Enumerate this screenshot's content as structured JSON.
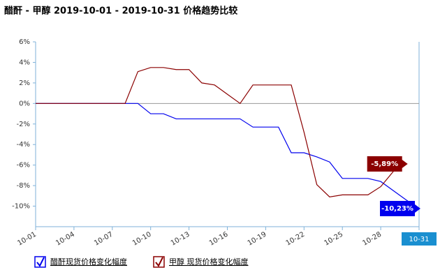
{
  "chart_data": {
    "type": "line",
    "title": "醋酐 - 甲醇 2019-10-01 - 2019-10-31 价格趋势比较",
    "categories": [
      "10-01",
      null,
      null,
      "10-04",
      null,
      null,
      "10-07",
      null,
      null,
      "10-10",
      null,
      null,
      "10-13",
      null,
      null,
      "10-16",
      null,
      null,
      "10-19",
      null,
      null,
      "10-22",
      null,
      null,
      "10-25",
      null,
      null,
      "10-28",
      null,
      null,
      "10-31"
    ],
    "ylim": [
      -12,
      6
    ],
    "yticks": [
      {
        "value": 6,
        "label": "6%"
      },
      {
        "value": 4,
        "label": "4%"
      },
      {
        "value": 2,
        "label": "2%"
      },
      {
        "value": 0,
        "label": "0%"
      },
      {
        "value": -2,
        "label": "-2%"
      },
      {
        "value": -4,
        "label": "-4%"
      },
      {
        "value": -6,
        "label": "-6%"
      },
      {
        "value": -8,
        "label": "-8%"
      },
      {
        "value": -10,
        "label": "-10%"
      }
    ],
    "series": [
      {
        "name": "醋酐现货价格变化幅度",
        "color": "#0000ee",
        "values": [
          0,
          0,
          0,
          0,
          0,
          0,
          0,
          0,
          0,
          -1.0,
          -1.0,
          -1.5,
          -1.5,
          -1.5,
          -1.5,
          -1.5,
          -1.5,
          -2.3,
          -2.3,
          -2.3,
          -4.8,
          -4.8,
          -5.2,
          -5.7,
          -7.3,
          -7.3,
          -7.3,
          -7.6,
          -8.5,
          -9.4,
          -10.23
        ],
        "value_labels": [
          null,
          null,
          null,
          null,
          null,
          null,
          null,
          null,
          null,
          null,
          null,
          null,
          null,
          null,
          null,
          null,
          null,
          null,
          null,
          null,
          null,
          null,
          null,
          null,
          null,
          null,
          null,
          null,
          null,
          null,
          "-10,23%"
        ]
      },
      {
        "name": "甲醇 现货价格变化幅度",
        "color": "#8b0000",
        "values": [
          0,
          0,
          0,
          0,
          0,
          0,
          0,
          0,
          3.1,
          3.5,
          3.5,
          3.3,
          3.3,
          2.0,
          1.8,
          0.9,
          0.0,
          1.8,
          1.8,
          1.8,
          1.8,
          -2.8,
          -7.9,
          -9.1,
          -8.9,
          -8.9,
          -8.9,
          -8.1,
          -6.6,
          -5.89,
          null
        ],
        "value_labels": [
          null,
          null,
          null,
          null,
          null,
          null,
          null,
          null,
          null,
          null,
          null,
          null,
          null,
          null,
          null,
          null,
          null,
          null,
          null,
          null,
          null,
          null,
          null,
          null,
          null,
          null,
          null,
          null,
          null,
          "-5,89%",
          null
        ]
      }
    ]
  }
}
